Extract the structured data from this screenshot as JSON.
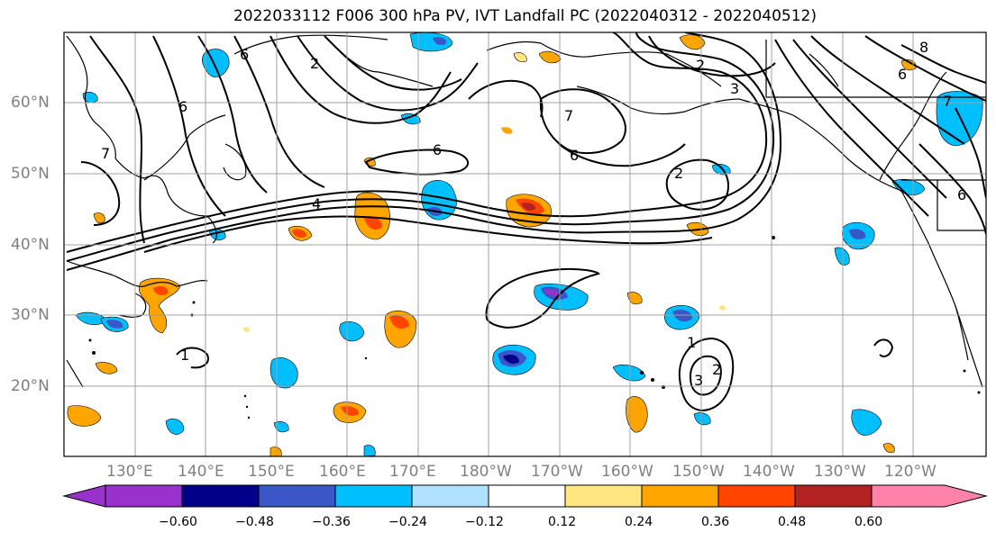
{
  "title": "2022033112 F006 300 hPa PV, IVT Landfall PC (2022040312 - 2022040512)",
  "lat_labels": [
    "60°N",
    "50°N",
    "40°N",
    "30°N",
    "20°N"
  ],
  "lon_labels": [
    "130°E",
    "140°E",
    "150°E",
    "160°E",
    "170°E",
    "180°W",
    "170°W",
    "160°W",
    "150°W",
    "140°W",
    "130°W",
    "120°W"
  ],
  "contour_labels": [
    "6",
    "2",
    "6",
    "7",
    "6",
    "4",
    "7",
    "2",
    "6",
    "3",
    "1",
    "3",
    "2",
    "2",
    "1",
    "6",
    "8",
    "7",
    "6"
  ],
  "colorbar": {
    "ticks": [
      "−0.60",
      "−0.48",
      "−0.36",
      "−0.24",
      "−0.12",
      "0.12",
      "0.24",
      "0.36",
      "0.48",
      "0.60"
    ],
    "colors": [
      "#9932cc",
      "#00008b",
      "#3a56c9",
      "#00bfff",
      "#b0e2ff",
      "#ffffff",
      "#ffe680",
      "#ffa500",
      "#ff4500",
      "#b22222",
      "#ff82ab"
    ]
  },
  "colors": {
    "contour": "#000000",
    "grid": "#a0a0a0",
    "axis_label": "#808080"
  }
}
